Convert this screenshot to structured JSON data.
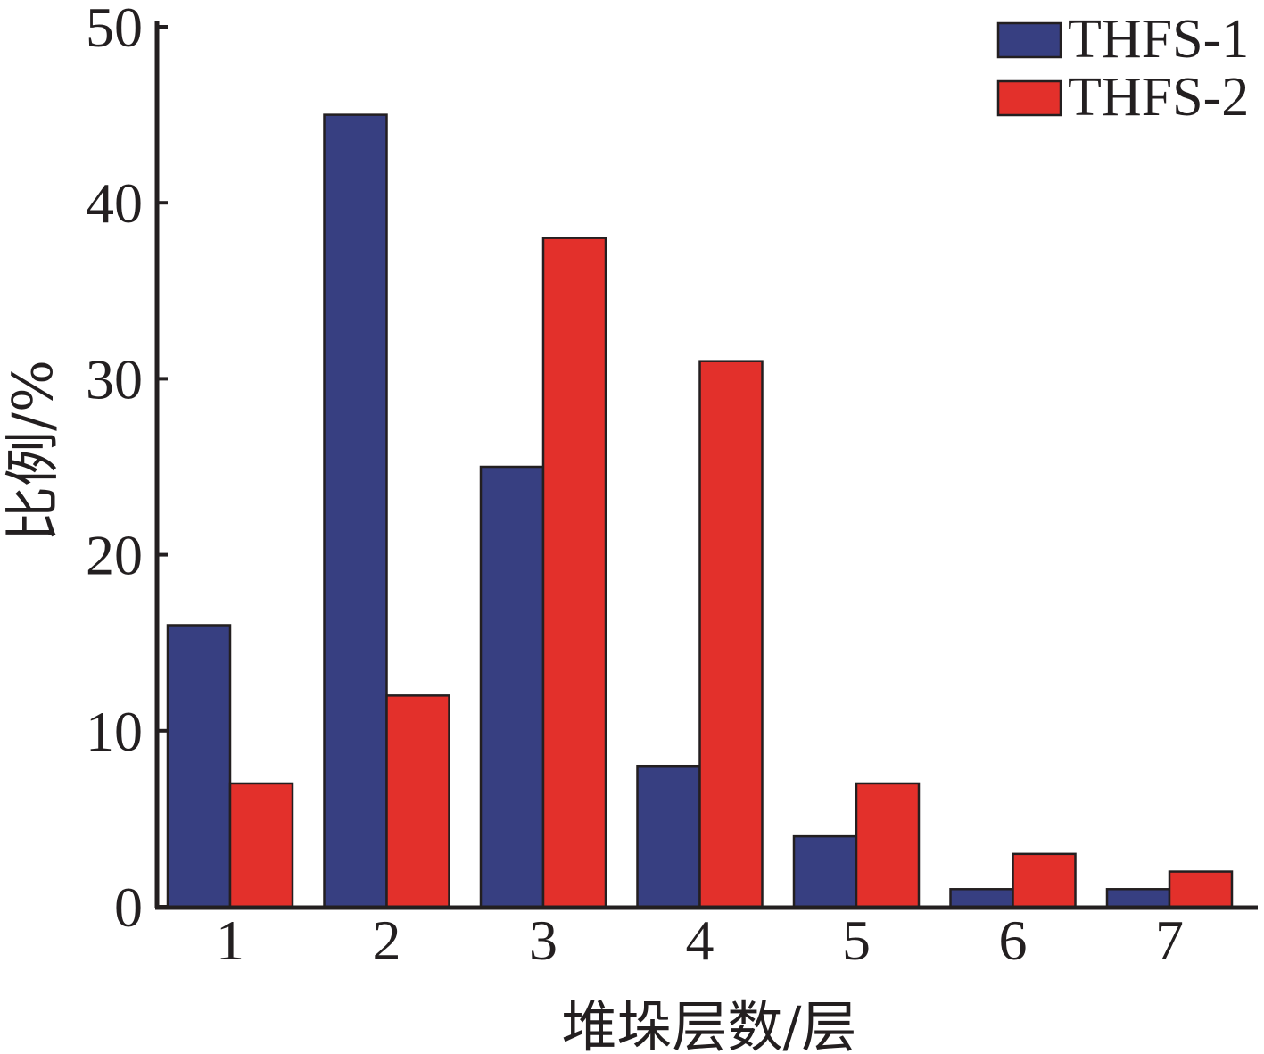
{
  "chart_data": {
    "type": "bar",
    "categories": [
      "1",
      "2",
      "3",
      "4",
      "5",
      "6",
      "7"
    ],
    "series": [
      {
        "name": "THFS-1",
        "color": "#373f81",
        "values": [
          16,
          45,
          25,
          8,
          4,
          1,
          1
        ]
      },
      {
        "name": "THFS-2",
        "color": "#e3302b",
        "values": [
          7,
          12,
          38,
          31,
          7,
          3,
          2
        ]
      }
    ],
    "title": "",
    "xlabel": "堆垛层数/层",
    "ylabel": "比例/%",
    "ylim": [
      0,
      50
    ],
    "yticks": [
      0,
      10,
      20,
      30,
      40,
      50
    ],
    "grid": false,
    "legend_position": "top-right"
  }
}
